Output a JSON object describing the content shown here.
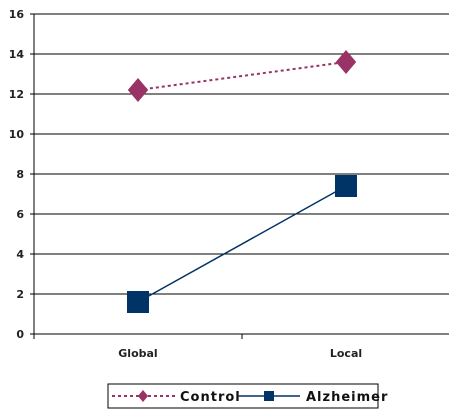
{
  "chart_data": {
    "type": "line",
    "categories": [
      "Global",
      "Local"
    ],
    "ylim": [
      0,
      16
    ],
    "yticks": [
      0,
      2,
      4,
      6,
      8,
      10,
      12,
      14,
      16
    ],
    "grid": true,
    "legend_position": "bottom",
    "series": [
      {
        "name": "Control",
        "values": [
          12.2,
          13.6
        ],
        "color": "#993366",
        "line_style": "dotted",
        "marker": "diamond"
      },
      {
        "name": "Alzheimer",
        "values": [
          1.6,
          7.4
        ],
        "color": "#003366",
        "line_style": "solid",
        "marker": "square"
      }
    ]
  }
}
